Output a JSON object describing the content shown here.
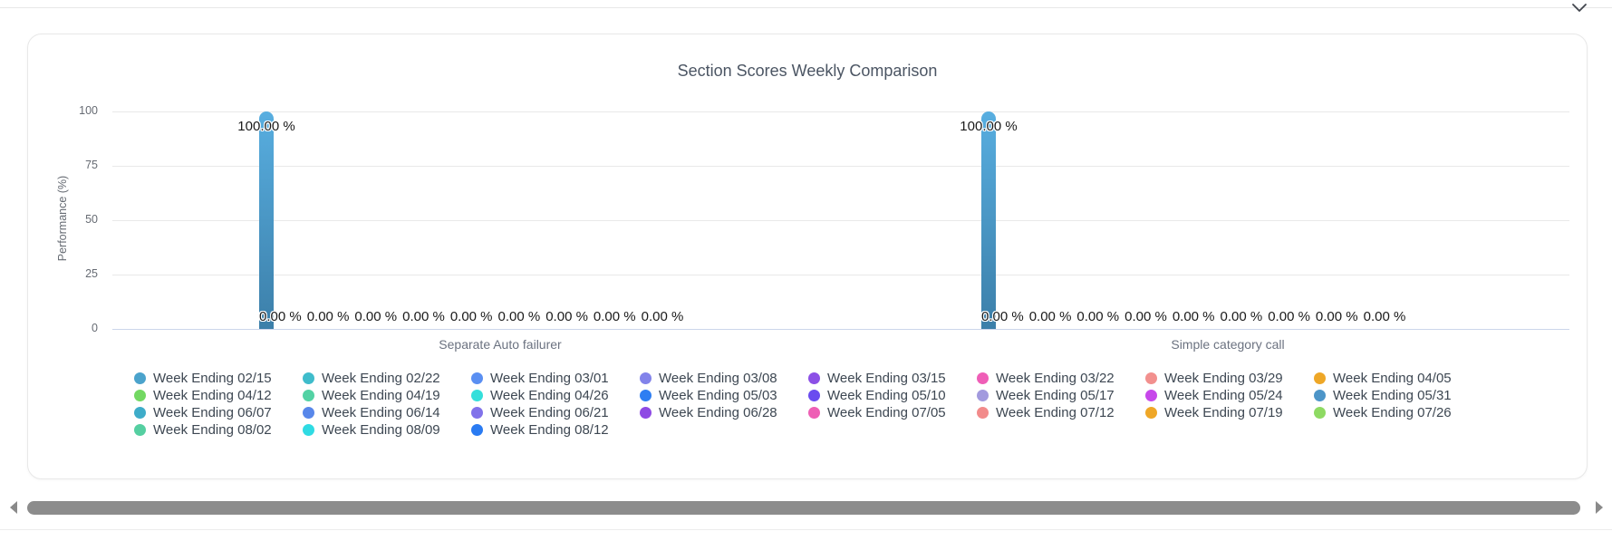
{
  "chart_data": {
    "type": "bar",
    "title": "Section Scores Weekly Comparison",
    "ylabel": "Performance (%)",
    "xlabel": "",
    "ylim": [
      0,
      100
    ],
    "yticks": [
      0,
      25,
      50,
      75,
      100
    ],
    "grid": true,
    "legend_position": "bottom",
    "categories": [
      "Separate Auto failurer",
      "Simple category call"
    ],
    "value_label_suffix": " %",
    "value_label_decimals": 2,
    "zero_labels_visible_per_category": 9,
    "bar_gradient": [
      "#58AEE0",
      "#3C7FA9"
    ],
    "series": [
      {
        "name": "Week Ending 02/15",
        "color": "#4BA3CC",
        "values": [
          100,
          100
        ]
      },
      {
        "name": "Week Ending 02/22",
        "color": "#3FBCCB",
        "values": [
          0,
          0
        ]
      },
      {
        "name": "Week Ending 03/01",
        "color": "#5A8FF2",
        "values": [
          0,
          0
        ]
      },
      {
        "name": "Week Ending 03/08",
        "color": "#8283EA",
        "values": [
          0,
          0
        ]
      },
      {
        "name": "Week Ending 03/15",
        "color": "#8C50E6",
        "values": [
          0,
          0
        ]
      },
      {
        "name": "Week Ending 03/22",
        "color": "#EF5EB7",
        "values": [
          0,
          0
        ]
      },
      {
        "name": "Week Ending 03/29",
        "color": "#F2908E",
        "values": [
          0,
          0
        ]
      },
      {
        "name": "Week Ending 04/05",
        "color": "#EEA727",
        "values": [
          0,
          0
        ]
      },
      {
        "name": "Week Ending 04/12",
        "color": "#72D862",
        "values": [
          0,
          0
        ]
      },
      {
        "name": "Week Ending 04/19",
        "color": "#53D2A4",
        "values": [
          0,
          0
        ]
      },
      {
        "name": "Week Ending 04/26",
        "color": "#35DFDB",
        "values": [
          0,
          0
        ]
      },
      {
        "name": "Week Ending 05/03",
        "color": "#2E7EF2",
        "values": [
          0,
          0
        ]
      },
      {
        "name": "Week Ending 05/10",
        "color": "#6A4CEF",
        "values": [
          0,
          0
        ]
      },
      {
        "name": "Week Ending 05/17",
        "color": "#A29ADE",
        "values": [
          0,
          0
        ]
      },
      {
        "name": "Week Ending 05/24",
        "color": "#C748EA",
        "values": [
          0,
          0
        ]
      },
      {
        "name": "Week Ending 05/31",
        "color": "#4D95C8",
        "values": [
          0,
          0
        ]
      },
      {
        "name": "Week Ending 06/07",
        "color": "#3EACC9",
        "values": [
          0,
          0
        ]
      },
      {
        "name": "Week Ending 06/14",
        "color": "#5887EA",
        "values": [
          0,
          0
        ]
      },
      {
        "name": "Week Ending 06/21",
        "color": "#8172EA",
        "values": [
          0,
          0
        ]
      },
      {
        "name": "Week Ending 06/28",
        "color": "#8E4AE4",
        "values": [
          0,
          0
        ]
      },
      {
        "name": "Week Ending 07/05",
        "color": "#EE5FB5",
        "values": [
          0,
          0
        ]
      },
      {
        "name": "Week Ending 07/12",
        "color": "#F28B8B",
        "values": [
          0,
          0
        ]
      },
      {
        "name": "Week Ending 07/19",
        "color": "#EFA727",
        "values": [
          0,
          0
        ]
      },
      {
        "name": "Week Ending 07/26",
        "color": "#8EDA63",
        "values": [
          0,
          0
        ]
      },
      {
        "name": "Week Ending 08/02",
        "color": "#55CFA1",
        "values": [
          0,
          0
        ]
      },
      {
        "name": "Week Ending 08/09",
        "color": "#2FDBE3",
        "values": [
          0,
          0
        ]
      },
      {
        "name": "Week Ending 08/12",
        "color": "#2A7BF2",
        "values": [
          0,
          0
        ]
      }
    ]
  }
}
